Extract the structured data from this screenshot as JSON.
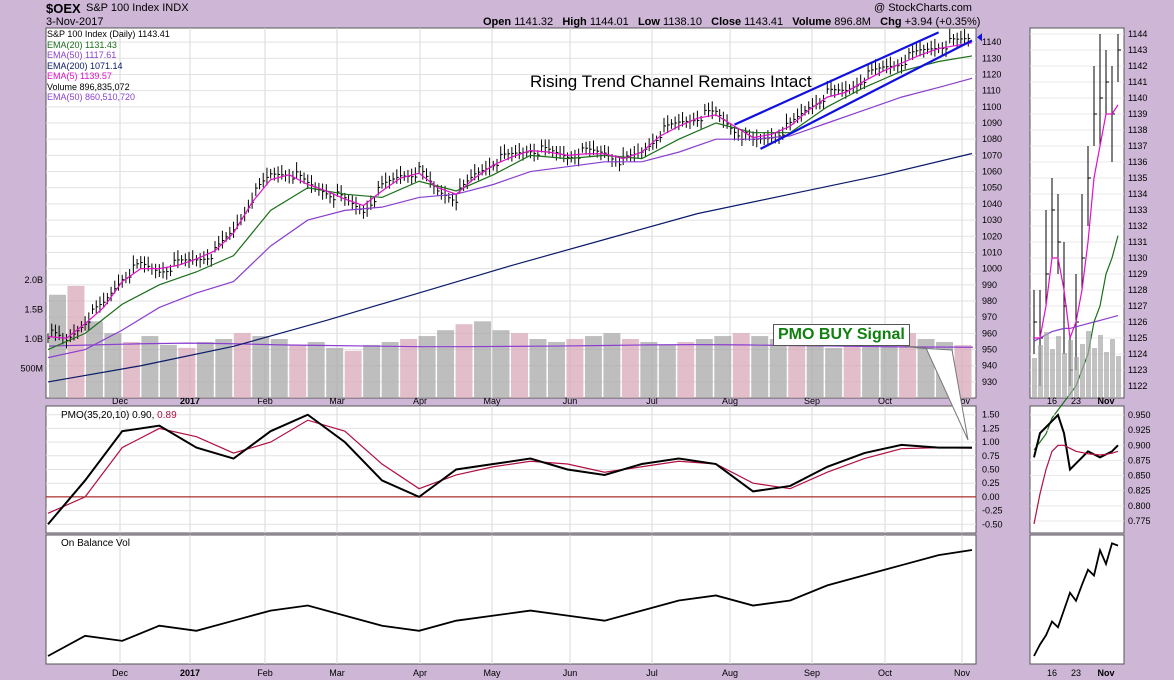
{
  "header": {
    "symbol": "$OEX",
    "name": "S&P 100 Index",
    "exchange": "INDX",
    "date": "3-Nov-2017",
    "open_label": "Open",
    "open": "1141.32",
    "high_label": "High",
    "high": "1144.01",
    "low_label": "Low",
    "low": "1138.10",
    "close_label": "Close",
    "close": "1143.41",
    "volume_label": "Volume",
    "volume": "896.8M",
    "chg_label": "Chg",
    "chg": "+3.94 (+0.35%)",
    "copyright": "@ StockCharts.com"
  },
  "legend": [
    {
      "text": "S&P 100 Index (Daily) 1143.41",
      "color": "#000000"
    },
    {
      "text": "EMA(20) 1131.43",
      "color": "#1a6e1a"
    },
    {
      "text": "EMA(50) 1117.61",
      "color": "#8a3fd0"
    },
    {
      "text": "EMA(200) 1071.14",
      "color": "#0a1a6a"
    },
    {
      "text": "EMA(5) 1139.57",
      "color": "#e010c8"
    },
    {
      "text": "Volume 896,835,072",
      "color": "#000000"
    },
    {
      "text": "EMA(50) 860,510,720",
      "color": "#8a3fd0"
    }
  ],
  "annotations": {
    "trend": "Rising Trend Channel Remains Intact",
    "pmo": "PMO BUY Signal"
  },
  "pmo_label": "PMO(35,20,10) 0.90, 0.89",
  "pmo_label_a": "PMO(35,20,10) 0.90,",
  "pmo_label_b": "0.89",
  "obv_label": "On Balance Vol",
  "colors": {
    "price": "#000000",
    "ema20": "#1a6e1a",
    "ema50": "#8a3fd0",
    "ema200": "#0a1a6a",
    "ema5": "#e010c8",
    "trend": "#1010e0",
    "pmo": "#000000",
    "pmo_signal": "#b01040",
    "zero_line": "#a00000",
    "vol_up": "#a8a8a8",
    "vol_down": "#d8a8b8",
    "annotation_green": "#108010"
  },
  "chart_data": [
    {
      "type": "line",
      "panel": "price",
      "y_ticks": [
        930,
        940,
        950,
        960,
        970,
        980,
        990,
        1000,
        1010,
        1020,
        1030,
        1040,
        1050,
        1060,
        1070,
        1080,
        1090,
        1100,
        1110,
        1120,
        1130,
        1140
      ],
      "ylim": [
        920,
        1150
      ],
      "x_ticks": [
        "Dec",
        "2017",
        "Feb",
        "Mar",
        "Apr",
        "May",
        "Jun",
        "Jul",
        "Aug",
        "Sep",
        "Oct",
        "Nov"
      ],
      "series": [
        {
          "name": "S&P 100 Index (Daily)",
          "x": [
            0,
            5,
            10,
            15,
            20,
            25,
            30,
            35,
            40,
            45,
            50,
            55,
            60,
            65,
            70,
            75,
            80,
            85,
            90,
            95,
            100,
            105,
            110,
            115,
            120,
            125,
            130,
            135,
            140,
            145,
            150,
            155,
            160,
            165,
            170,
            175,
            180,
            185,
            190,
            195,
            200,
            205,
            210,
            215,
            220,
            225,
            230,
            235,
            240,
            245,
            249
          ],
          "values": [
            960,
            955,
            968,
            978,
            995,
            1002,
            999,
            1003,
            1006,
            1010,
            1024,
            1044,
            1058,
            1060,
            1052,
            1048,
            1042,
            1036,
            1050,
            1058,
            1060,
            1048,
            1044,
            1058,
            1066,
            1070,
            1074,
            1072,
            1070,
            1072,
            1072,
            1066,
            1072,
            1084,
            1090,
            1094,
            1096,
            1086,
            1078,
            1082,
            1088,
            1100,
            1108,
            1110,
            1118,
            1124,
            1128,
            1134,
            1138,
            1140,
            1143
          ]
        },
        {
          "name": "EMA(5)",
          "x": [
            0,
            5,
            10,
            15,
            20,
            25,
            30,
            35,
            40,
            45,
            50,
            55,
            60,
            65,
            70,
            75,
            80,
            85,
            90,
            95,
            100,
            105,
            110,
            115,
            120,
            125,
            130,
            135,
            140,
            145,
            150,
            155,
            160,
            165,
            170,
            175,
            180,
            185,
            190,
            195,
            200,
            205,
            210,
            215,
            220,
            225,
            230,
            235,
            240,
            245,
            249
          ],
          "values": [
            958,
            957,
            966,
            976,
            992,
            1000,
            1000,
            1002,
            1006,
            1011,
            1022,
            1041,
            1055,
            1058,
            1052,
            1048,
            1043,
            1039,
            1048,
            1056,
            1059,
            1050,
            1046,
            1056,
            1064,
            1069,
            1073,
            1072,
            1070,
            1071,
            1071,
            1068,
            1072,
            1082,
            1088,
            1093,
            1095,
            1088,
            1081,
            1083,
            1088,
            1098,
            1106,
            1109,
            1116,
            1122,
            1127,
            1132,
            1136,
            1138,
            1139.57
          ]
        },
        {
          "name": "EMA(20)",
          "x": [
            0,
            10,
            20,
            30,
            40,
            50,
            60,
            70,
            80,
            90,
            100,
            110,
            120,
            130,
            140,
            150,
            160,
            170,
            180,
            190,
            200,
            210,
            220,
            230,
            240,
            249
          ],
          "values": [
            950,
            960,
            978,
            990,
            998,
            1008,
            1036,
            1050,
            1046,
            1044,
            1054,
            1048,
            1058,
            1070,
            1068,
            1070,
            1068,
            1080,
            1090,
            1084,
            1084,
            1100,
            1112,
            1122,
            1128,
            1131.43
          ]
        },
        {
          "name": "EMA(50)",
          "x": [
            0,
            10,
            20,
            30,
            40,
            50,
            60,
            70,
            80,
            90,
            100,
            110,
            120,
            130,
            140,
            150,
            160,
            170,
            180,
            190,
            200,
            210,
            220,
            230,
            240,
            249
          ],
          "values": [
            945,
            950,
            962,
            976,
            985,
            992,
            1014,
            1030,
            1036,
            1038,
            1044,
            1046,
            1052,
            1060,
            1063,
            1066,
            1066,
            1072,
            1080,
            1080,
            1082,
            1090,
            1098,
            1106,
            1112,
            1117.61
          ]
        },
        {
          "name": "EMA(200)",
          "x": [
            0,
            25,
            50,
            75,
            100,
            125,
            150,
            175,
            200,
            225,
            249
          ],
          "values": [
            930,
            940,
            952,
            968,
            985,
            1002,
            1018,
            1034,
            1046,
            1058,
            1071.14
          ]
        }
      ],
      "trend_channel": {
        "upper": [
          [
            185,
            1089
          ],
          [
            240,
            1146
          ]
        ],
        "lower": [
          [
            192,
            1074
          ],
          [
            249,
            1141
          ]
        ]
      }
    },
    {
      "type": "bar",
      "panel": "volume",
      "y_ticks": [
        "500M",
        "1.0B",
        "1.5B",
        "2.0B"
      ],
      "ylim": [
        0,
        2200
      ],
      "unit": "millions",
      "values": [
        1750,
        1900,
        1300,
        1100,
        950,
        1050,
        900,
        850,
        950,
        1000,
        1100,
        1050,
        1000,
        900,
        950,
        850,
        800,
        900,
        950,
        1000,
        1050,
        1150,
        1250,
        1300,
        1150,
        1100,
        1000,
        950,
        1000,
        1050,
        1100,
        1000,
        950,
        900,
        950,
        1000,
        1050,
        1100,
        1050,
        1000,
        950,
        900,
        850,
        900,
        1000,
        1050,
        1100,
        1000,
        950,
        896.8
      ],
      "ema50": [
        880,
        900,
        920,
        930,
        920,
        900,
        890,
        880,
        870,
        870,
        875,
        880,
        890,
        900,
        905,
        900,
        890,
        880,
        870,
        865,
        860
      ]
    },
    {
      "type": "line",
      "panel": "pmo",
      "y_ticks": [
        -0.5,
        -0.25,
        0,
        0.25,
        0.5,
        0.75,
        1.0,
        1.25,
        1.5
      ],
      "ylim": [
        -0.6,
        1.6
      ],
      "series": [
        {
          "name": "PMO(35,20,10)",
          "x": [
            0,
            10,
            20,
            30,
            40,
            50,
            60,
            70,
            80,
            90,
            100,
            110,
            120,
            130,
            140,
            150,
            160,
            170,
            180,
            190,
            200,
            210,
            220,
            230,
            240,
            249
          ],
          "values": [
            -0.5,
            0.3,
            1.2,
            1.3,
            0.9,
            0.7,
            1.2,
            1.5,
            1.0,
            0.3,
            0.0,
            0.5,
            0.6,
            0.7,
            0.5,
            0.4,
            0.6,
            0.7,
            0.6,
            0.1,
            0.2,
            0.55,
            0.8,
            0.95,
            0.9,
            0.9
          ]
        },
        {
          "name": "Signal",
          "x": [
            0,
            10,
            20,
            30,
            40,
            50,
            60,
            70,
            80,
            90,
            100,
            110,
            120,
            130,
            140,
            150,
            160,
            170,
            180,
            190,
            200,
            210,
            220,
            230,
            240,
            249
          ],
          "values": [
            -0.3,
            0.0,
            0.9,
            1.25,
            1.1,
            0.8,
            1.0,
            1.4,
            1.2,
            0.6,
            0.15,
            0.4,
            0.55,
            0.65,
            0.6,
            0.45,
            0.55,
            0.65,
            0.6,
            0.25,
            0.15,
            0.45,
            0.7,
            0.88,
            0.9,
            0.89
          ]
        }
      ]
    },
    {
      "type": "line",
      "panel": "obv",
      "series": [
        {
          "name": "On Balance Vol",
          "x": [
            0,
            10,
            20,
            30,
            40,
            50,
            60,
            70,
            80,
            90,
            100,
            110,
            120,
            130,
            140,
            150,
            160,
            170,
            180,
            190,
            200,
            210,
            220,
            230,
            240,
            249
          ],
          "values": [
            0,
            20,
            15,
            30,
            25,
            35,
            45,
            50,
            40,
            30,
            25,
            35,
            40,
            45,
            40,
            35,
            45,
            55,
            60,
            50,
            55,
            70,
            80,
            90,
            100,
            105
          ]
        }
      ]
    }
  ]
}
